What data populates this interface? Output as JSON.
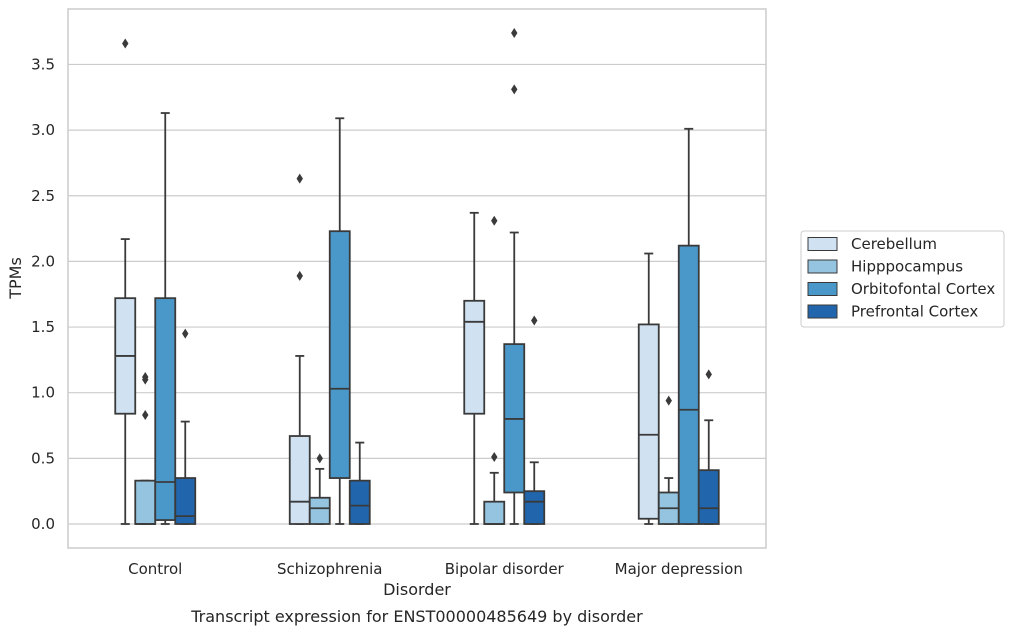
{
  "chart_data": {
    "type": "box",
    "title": "",
    "caption": "Transcript expression for ENST00000485649 by disorder",
    "xlabel": "Disorder",
    "ylabel": "TPMs",
    "ylim": [
      -0.18,
      3.9
    ],
    "yticks": [
      0.0,
      0.5,
      1.0,
      1.5,
      2.0,
      2.5,
      3.0,
      3.5
    ],
    "ytick_labels": [
      "0.0",
      "0.5",
      "1.0",
      "1.5",
      "2.0",
      "2.5",
      "3.0",
      "3.5"
    ],
    "categories": [
      "Control",
      "Schizophrenia",
      "Bipolar disorder",
      "Major depression"
    ],
    "grid": "horizontal",
    "legend_position": "right",
    "series": [
      {
        "name": "Cerebellum",
        "color": "#d0e1f2",
        "boxes": [
          {
            "whislo": 0.0,
            "q1": 0.84,
            "med": 1.28,
            "q3": 1.72,
            "whishi": 2.17,
            "fliers": [
              3.66
            ]
          },
          {
            "whislo": 0.0,
            "q1": 0.0,
            "med": 0.17,
            "q3": 0.67,
            "whishi": 1.28,
            "fliers": [
              1.89,
              2.63
            ]
          },
          {
            "whislo": 0.0,
            "q1": 0.84,
            "med": 1.54,
            "q3": 1.7,
            "whishi": 2.37,
            "fliers": []
          },
          {
            "whislo": 0.0,
            "q1": 0.04,
            "med": 0.68,
            "q3": 1.52,
            "whishi": 2.06,
            "fliers": []
          }
        ]
      },
      {
        "name": "Hipppocampus",
        "color": "#94c4df",
        "boxes": [
          {
            "whislo": 0.0,
            "q1": 0.0,
            "med": 0.0,
            "q3": 0.33,
            "whishi": 0.33,
            "fliers": [
              0.83,
              1.1,
              1.12
            ]
          },
          {
            "whislo": 0.0,
            "q1": 0.0,
            "med": 0.12,
            "q3": 0.2,
            "whishi": 0.42,
            "fliers": [
              0.5
            ]
          },
          {
            "whislo": 0.0,
            "q1": 0.0,
            "med": 0.0,
            "q3": 0.17,
            "whishi": 0.39,
            "fliers": [
              0.51,
              2.31
            ]
          },
          {
            "whislo": 0.0,
            "q1": 0.0,
            "med": 0.12,
            "q3": 0.24,
            "whishi": 0.35,
            "fliers": [
              0.94
            ]
          }
        ]
      },
      {
        "name": "Orbitofontal Cortex",
        "color": "#4a98c9",
        "boxes": [
          {
            "whislo": 0.0,
            "q1": 0.03,
            "med": 0.32,
            "q3": 1.72,
            "whishi": 3.13,
            "fliers": []
          },
          {
            "whislo": 0.0,
            "q1": 0.35,
            "med": 1.03,
            "q3": 2.23,
            "whishi": 3.09,
            "fliers": []
          },
          {
            "whislo": 0.0,
            "q1": 0.24,
            "med": 0.8,
            "q3": 1.37,
            "whishi": 2.22,
            "fliers": [
              3.31,
              3.74
            ]
          },
          {
            "whislo": 0.0,
            "q1": 0.0,
            "med": 0.87,
            "q3": 2.12,
            "whishi": 3.01,
            "fliers": []
          }
        ]
      },
      {
        "name": "Prefrontal Cortex",
        "color": "#2166ac",
        "boxes": [
          {
            "whislo": 0.0,
            "q1": 0.0,
            "med": 0.06,
            "q3": 0.35,
            "whishi": 0.78,
            "fliers": [
              1.45
            ]
          },
          {
            "whislo": 0.0,
            "q1": 0.0,
            "med": 0.14,
            "q3": 0.33,
            "whishi": 0.62,
            "fliers": []
          },
          {
            "whislo": 0.0,
            "q1": 0.0,
            "med": 0.17,
            "q3": 0.25,
            "whishi": 0.47,
            "fliers": [
              1.55
            ]
          },
          {
            "whislo": 0.0,
            "q1": 0.0,
            "med": 0.12,
            "q3": 0.41,
            "whishi": 0.79,
            "fliers": [
              1.14
            ]
          }
        ]
      }
    ]
  }
}
